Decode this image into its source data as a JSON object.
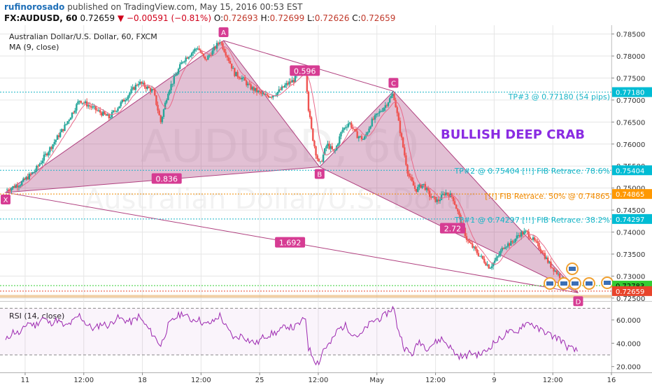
{
  "header": {
    "author": "rufinorosado",
    "published_text": "published on TradingView.com, May 15, 2016 00:53 EST",
    "symbol": "FX:AUDUSD, 60",
    "last": "0.72659",
    "change_text": "▼ −0.00591 (−0.81%)",
    "o_label": "O:",
    "o_value": "0.72693",
    "h_label": "H:",
    "h_value": "0.72699",
    "l_label": "L:",
    "l_value": "0.72626",
    "c_label": "C:",
    "c_value": "0.72659"
  },
  "legend": {
    "title": "Australian Dollar/U.S. Dollar, 60, FXCM",
    "ma": "MA (9, close)",
    "rsi": "RSI (14, close)"
  },
  "watermark": {
    "line1": "AUDUSD, 60",
    "line2": "Australian Dollar/U.S. Dollar"
  },
  "annotations": {
    "title": "BULLISH DEEP CRAB",
    "tp3": "TP#3 @ 0.77180 (54 pips)",
    "tp2": "TP#2 @ 0.75404 [!!] FIB Retrace. 78.6%",
    "fib50": "[!!] FIB Retrace. 50% @ 0.74865",
    "tp1": "TP#1 @ 0.74297 [!!] FIB Retrace. 38.2%"
  },
  "pattern": {
    "points": [
      {
        "label": "X",
        "t": 0,
        "price": 0.749
      },
      {
        "label": "A",
        "t": 29.5,
        "price": 0.7835
      },
      {
        "label": "B",
        "t": 42.5,
        "price": 0.7548
      },
      {
        "label": "C",
        "t": 52.5,
        "price": 0.772
      },
      {
        "label": "D",
        "t": 77.5,
        "price": 0.7262
      }
    ],
    "ratios": [
      {
        "text": "0.836",
        "t": 21.8,
        "price": 0.7521
      },
      {
        "text": "0.596",
        "t": 40.5,
        "price": 0.7766
      },
      {
        "text": "2.72",
        "t": 60.5,
        "price": 0.7408
      },
      {
        "text": "1.692",
        "t": 38.5,
        "price": 0.7376
      }
    ]
  },
  "price_tags": [
    {
      "text": "0.77180",
      "price": 0.7718,
      "bg": "#00bcd4",
      "fg": "#ffffff"
    },
    {
      "text": "0.75404",
      "price": 0.75404,
      "bg": "#00bcd4",
      "fg": "#ffffff"
    },
    {
      "text": "0.74865",
      "price": 0.74865,
      "bg": "#ff9800",
      "fg": "#ffffff"
    },
    {
      "text": "0.74297",
      "price": 0.74297,
      "bg": "#00bcd4",
      "fg": "#ffffff"
    },
    {
      "text": "0.72783",
      "price": 0.72783,
      "bg": "#33cc33",
      "fg": "#000000"
    },
    {
      "text": "0.72659",
      "price": 0.72659,
      "bg": "#e8442b",
      "fg": "#ffffff"
    }
  ],
  "colors": {
    "up": "#26a69a",
    "down": "#ef5350",
    "ma": "#e86a8a",
    "pattern_fill": "#a0306f",
    "pattern_line": "#b0407f",
    "label_bg": "#d63c93",
    "tp_text": "#19b5c7",
    "fib_text": "#f08a00",
    "title_color": "#8a2be2",
    "rsi": "#9c27b0",
    "grid": "#e6e6e6"
  },
  "chart_data": [
    {
      "type": "candlestick",
      "title": "Australian Dollar/U.S. Dollar, 60, FXCM",
      "ylim": [
        0.7245,
        0.787
      ],
      "yticks": [
        "0.78500",
        "0.78000",
        "0.77500",
        "0.77000",
        "0.76500",
        "0.76000",
        "0.75500",
        "0.75000",
        "0.74500",
        "0.74000",
        "0.73500",
        "0.73000",
        "0.72500"
      ],
      "x_tick_labels": [
        "11",
        "12:00",
        "18",
        "12:00",
        "25",
        "12:00",
        "May",
        "12:00",
        "9",
        "12:00",
        "16"
      ],
      "horizontal_levels": [
        {
          "name": "TP#3",
          "value": 0.7718
        },
        {
          "name": "TP#2",
          "value": 0.75404
        },
        {
          "name": "FIB 50%",
          "value": 0.74865
        },
        {
          "name": "TP#1",
          "value": 0.74297
        },
        {
          "name": "MA",
          "value": 0.72783
        },
        {
          "name": "Last",
          "value": 0.72659
        }
      ],
      "price_path": [
        [
          0,
          0.7495
        ],
        [
          2,
          0.751
        ],
        [
          4,
          0.754
        ],
        [
          6,
          0.759
        ],
        [
          8,
          0.764
        ],
        [
          10,
          0.77
        ],
        [
          12,
          0.768
        ],
        [
          14,
          0.766
        ],
        [
          16,
          0.77
        ],
        [
          18,
          0.774
        ],
        [
          20,
          0.772
        ],
        [
          21,
          0.765
        ],
        [
          22,
          0.772
        ],
        [
          24,
          0.779
        ],
        [
          26,
          0.782
        ],
        [
          27,
          0.779
        ],
        [
          28,
          0.781
        ],
        [
          29,
          0.7835
        ],
        [
          30,
          0.78
        ],
        [
          31,
          0.776
        ],
        [
          32,
          0.775
        ],
        [
          33,
          0.773
        ],
        [
          34,
          0.772
        ],
        [
          35,
          0.771
        ],
        [
          36,
          0.771
        ],
        [
          37,
          0.772
        ],
        [
          38,
          0.7735
        ],
        [
          39,
          0.7745
        ],
        [
          40,
          0.7765
        ],
        [
          40.6,
          0.777
        ],
        [
          41,
          0.768
        ],
        [
          41.5,
          0.762
        ],
        [
          42,
          0.758
        ],
        [
          42.5,
          0.755
        ],
        [
          43.5,
          0.76
        ],
        [
          44.5,
          0.758
        ],
        [
          45.5,
          0.763
        ],
        [
          46.5,
          0.765
        ],
        [
          47.5,
          0.762
        ],
        [
          48.5,
          0.761
        ],
        [
          49.5,
          0.765
        ],
        [
          50.5,
          0.767
        ],
        [
          51.5,
          0.769
        ],
        [
          52.5,
          0.7715
        ],
        [
          53.5,
          0.762
        ],
        [
          54.5,
          0.753
        ],
        [
          55.5,
          0.7495
        ],
        [
          56.5,
          0.751
        ],
        [
          57.5,
          0.748
        ],
        [
          58.5,
          0.747
        ],
        [
          59.5,
          0.749
        ],
        [
          60.5,
          0.748
        ],
        [
          61.5,
          0.743
        ],
        [
          62.5,
          0.738
        ],
        [
          63.5,
          0.736
        ],
        [
          64.5,
          0.734
        ],
        [
          65.5,
          0.732
        ],
        [
          66.5,
          0.734
        ],
        [
          67.5,
          0.737
        ],
        [
          68.5,
          0.7375
        ],
        [
          69.5,
          0.7395
        ],
        [
          70.5,
          0.74
        ],
        [
          71.5,
          0.738
        ],
        [
          72.5,
          0.736
        ],
        [
          73.5,
          0.733
        ],
        [
          74.5,
          0.731
        ],
        [
          75.5,
          0.729
        ],
        [
          76.5,
          0.7275
        ],
        [
          77.5,
          0.7266
        ]
      ]
    },
    {
      "type": "line",
      "title": "RSI (14, close)",
      "ylim": [
        15,
        75
      ],
      "yticks": [
        "60.000",
        "40.000",
        "20.000"
      ],
      "reference_lines": [
        70,
        30
      ],
      "series": [
        {
          "name": "RSI (14, close)",
          "values": [
            [
              0,
              42
            ],
            [
              1,
              50
            ],
            [
              2,
              48
            ],
            [
              3,
              58
            ],
            [
              4,
              55
            ],
            [
              5,
              62
            ],
            [
              6,
              57
            ],
            [
              7,
              60
            ],
            [
              8,
              54
            ],
            [
              9,
              58
            ],
            [
              10,
              64
            ],
            [
              11,
              56
            ],
            [
              12,
              52
            ],
            [
              13,
              57
            ],
            [
              14,
              55
            ],
            [
              15,
              62
            ],
            [
              16,
              60
            ],
            [
              17,
              58
            ],
            [
              18,
              63
            ],
            [
              19,
              55
            ],
            [
              20,
              47
            ],
            [
              21,
              38
            ],
            [
              22,
              55
            ],
            [
              23,
              62
            ],
            [
              24,
              66
            ],
            [
              25,
              60
            ],
            [
              26,
              61
            ],
            [
              27,
              56
            ],
            [
              28,
              58
            ],
            [
              29,
              64
            ],
            [
              30,
              52
            ],
            [
              31,
              44
            ],
            [
              32,
              47
            ],
            [
              33,
              42
            ],
            [
              34,
              40
            ],
            [
              35,
              46
            ],
            [
              36,
              48
            ],
            [
              37,
              50
            ],
            [
              38,
              55
            ],
            [
              39,
              53
            ],
            [
              40,
              58
            ],
            [
              40.6,
              62
            ],
            [
              41,
              36
            ],
            [
              41.5,
              30
            ],
            [
              42,
              24
            ],
            [
              42.5,
              24
            ],
            [
              43,
              35
            ],
            [
              44,
              40
            ],
            [
              45,
              52
            ],
            [
              46,
              55
            ],
            [
              47,
              48
            ],
            [
              48,
              46
            ],
            [
              49,
              55
            ],
            [
              50,
              60
            ],
            [
              51,
              62
            ],
            [
              52,
              68
            ],
            [
              52.5,
              71
            ],
            [
              53,
              55
            ],
            [
              54,
              36
            ],
            [
              55,
              30
            ],
            [
              56,
              42
            ],
            [
              57,
              36
            ],
            [
              58,
              40
            ],
            [
              59,
              44
            ],
            [
              60,
              38
            ],
            [
              61,
              30
            ],
            [
              62,
              28
            ],
            [
              63,
              32
            ],
            [
              64,
              30
            ],
            [
              65,
              33
            ],
            [
              66,
              40
            ],
            [
              67,
              44
            ],
            [
              68,
              50
            ],
            [
              69,
              48
            ],
            [
              70,
              56
            ],
            [
              71,
              58
            ],
            [
              72,
              52
            ],
            [
              73,
              50
            ],
            [
              74,
              46
            ],
            [
              75,
              44
            ],
            [
              76,
              37
            ],
            [
              77,
              34
            ],
            [
              77.5,
              33
            ]
          ]
        }
      ]
    }
  ]
}
